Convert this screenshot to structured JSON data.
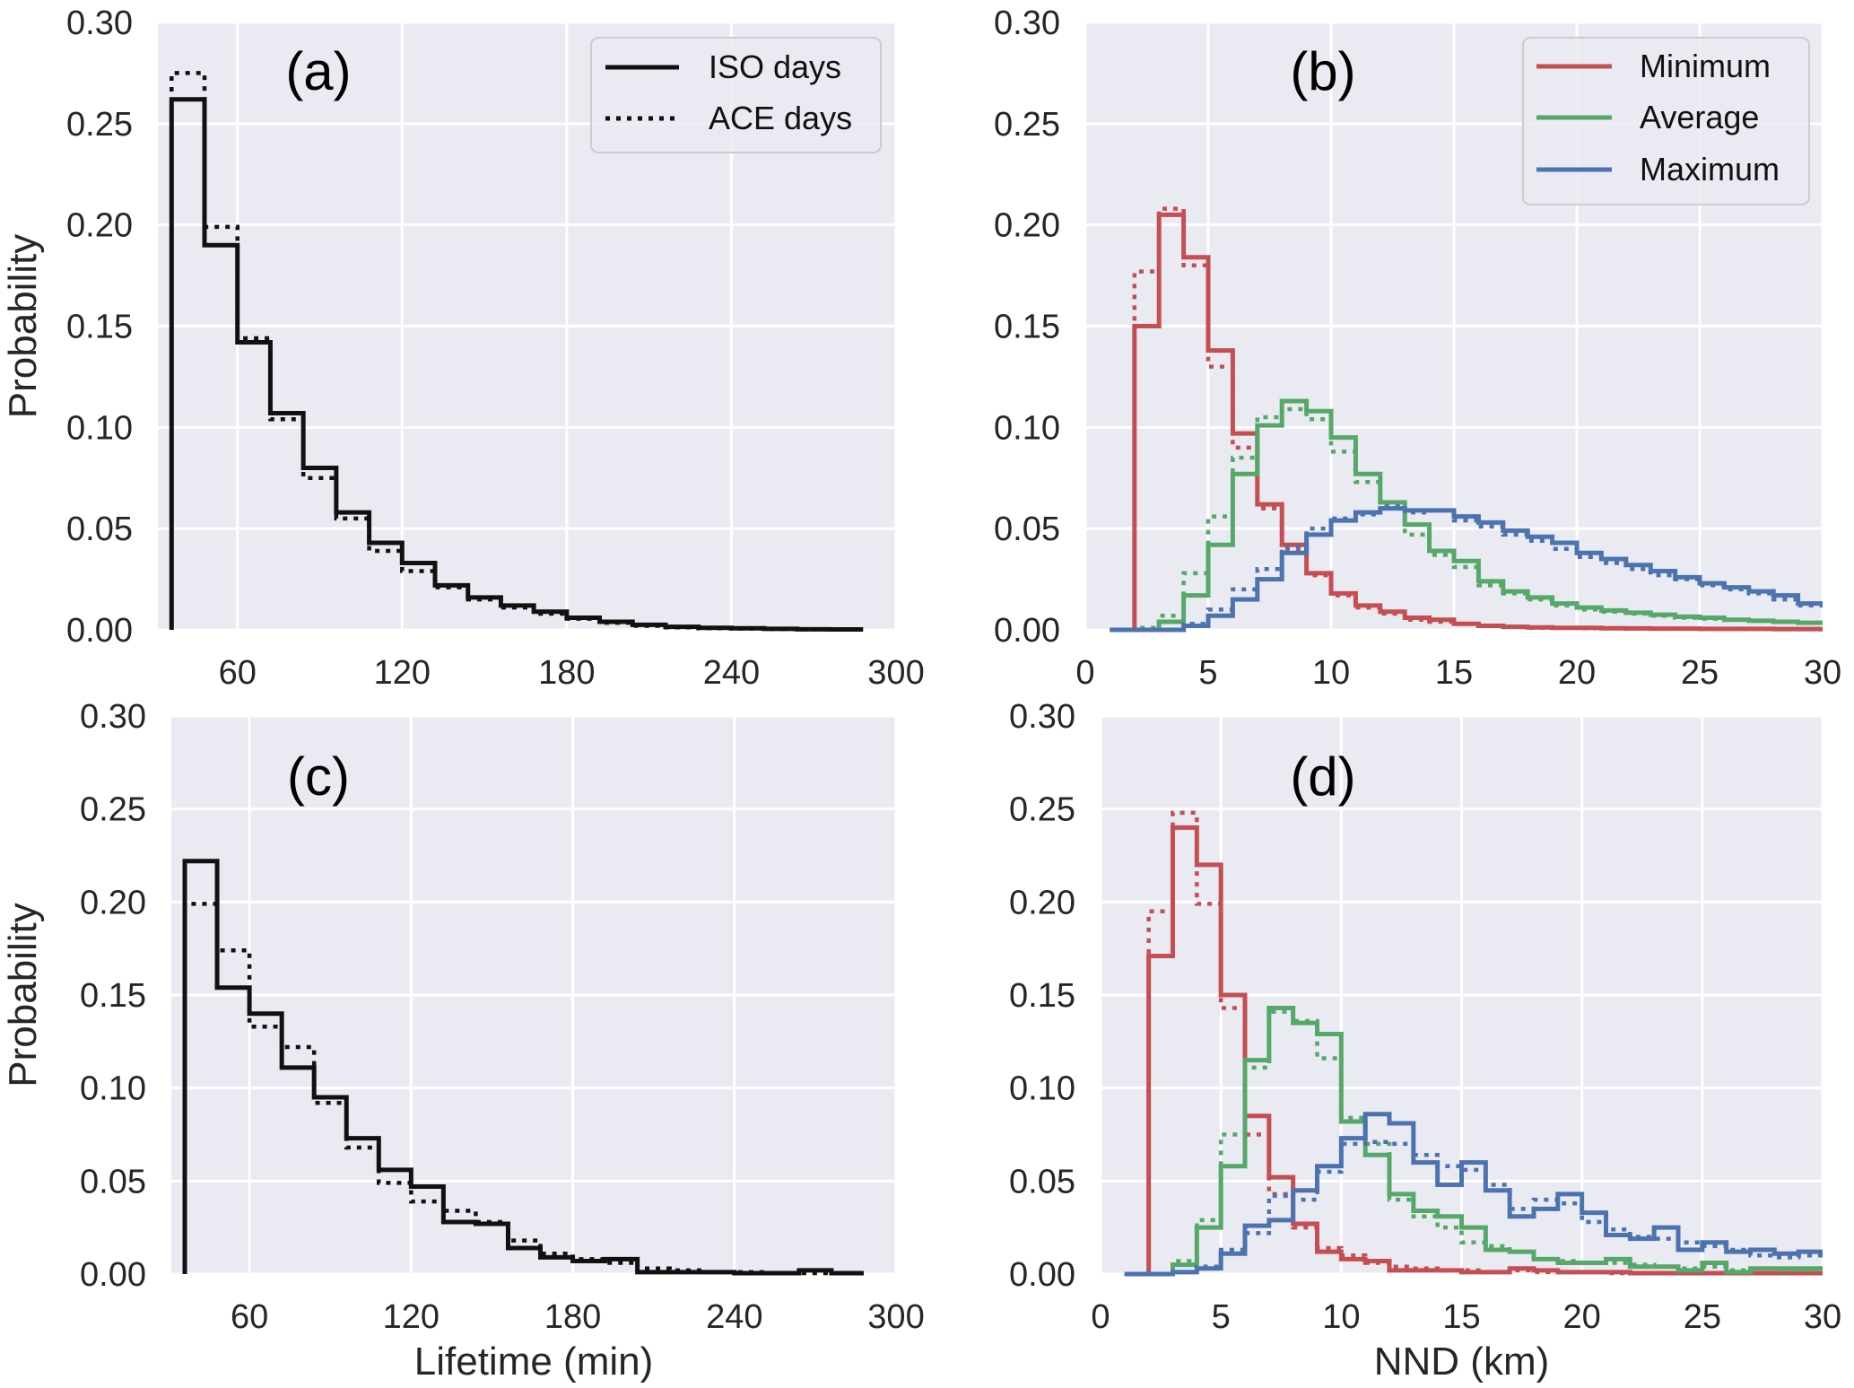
{
  "chart_data": [
    {
      "panel_label": "(a)",
      "type": "line",
      "style": "step-histogram",
      "ylabel": "Probability",
      "xlabel": "",
      "xlim": [
        31,
        300
      ],
      "ylim": [
        0,
        0.3
      ],
      "xticks": [
        60,
        120,
        180,
        240,
        300
      ],
      "yticks": [
        "0.00",
        "0.05",
        "0.10",
        "0.15",
        "0.20",
        "0.25",
        "0.30"
      ],
      "grid": true,
      "legend": {
        "placement": "top-right",
        "entries": [
          {
            "label": "ISO days",
            "style": "solid"
          },
          {
            "label": "ACE days",
            "style": "dotted"
          }
        ]
      },
      "bin_start": 36,
      "bin_width": 12,
      "series": [
        {
          "name": "ISO days",
          "style": "solid",
          "color": "#111111",
          "values": [
            0.262,
            0.19,
            0.142,
            0.107,
            0.08,
            0.058,
            0.043,
            0.033,
            0.022,
            0.016,
            0.012,
            0.009,
            0.006,
            0.004,
            0.0025,
            0.0015,
            0.001,
            0.0008,
            0.0005,
            0.0003,
            0.0002
          ]
        },
        {
          "name": "ACE days",
          "style": "dotted",
          "color": "#111111",
          "values": [
            0.275,
            0.199,
            0.144,
            0.104,
            0.075,
            0.055,
            0.039,
            0.029,
            0.021,
            0.015,
            0.011,
            0.008,
            0.0055,
            0.0035,
            0.002,
            0.0012,
            0.0008,
            0.0006,
            0.0004,
            0.0002,
            0.0001
          ]
        }
      ]
    },
    {
      "panel_label": "(b)",
      "type": "line",
      "style": "step-histogram",
      "ylabel": "",
      "xlabel": "",
      "xlim": [
        0,
        30
      ],
      "ylim": [
        0,
        0.3
      ],
      "xticks": [
        0,
        5,
        10,
        15,
        20,
        25,
        30
      ],
      "yticks": [
        "0.00",
        "0.05",
        "0.10",
        "0.15",
        "0.20",
        "0.25",
        "0.30"
      ],
      "grid": true,
      "legend": {
        "placement": "top-right",
        "entries": [
          {
            "label": "Minimum",
            "color": "#c44e52"
          },
          {
            "label": "Average",
            "color": "#55a868"
          },
          {
            "label": "Maximum",
            "color": "#4c72b0"
          }
        ]
      },
      "bin_start": 1,
      "bin_width": 1,
      "series": [
        {
          "name": "Minimum",
          "style": "solid",
          "color": "#c44e52",
          "values": [
            0,
            0.15,
            0.205,
            0.184,
            0.138,
            0.097,
            0.062,
            0.042,
            0.028,
            0.018,
            0.012,
            0.009,
            0.006,
            0.005,
            0.003,
            0.002,
            0.0015,
            0.0012,
            0.001,
            0.001,
            0.0008,
            0.0007,
            0.0006,
            0.0006,
            0.0005,
            0.0005,
            0.0005,
            0.0004,
            0.0004
          ]
        },
        {
          "name": "Minimum",
          "style": "dotted",
          "color": "#c44e52",
          "values": [
            0,
            0.177,
            0.208,
            0.18,
            0.13,
            0.09,
            0.06,
            0.04,
            0.027,
            0.017,
            0.011,
            0.008,
            0.005,
            0.004,
            0.003,
            0.002,
            0.0015,
            0.001,
            0.001,
            0.0008,
            0.0007,
            0.0006,
            0.0005,
            0.0005,
            0.0004,
            0.0004,
            0.0004,
            0.0003,
            0.0003
          ]
        },
        {
          "name": "Average",
          "style": "solid",
          "color": "#55a868",
          "values": [
            0,
            0,
            0.004,
            0.017,
            0.042,
            0.077,
            0.101,
            0.113,
            0.108,
            0.095,
            0.077,
            0.063,
            0.052,
            0.039,
            0.034,
            0.024,
            0.019,
            0.016,
            0.013,
            0.011,
            0.0096,
            0.0085,
            0.0075,
            0.0065,
            0.006,
            0.005,
            0.0045,
            0.004,
            0.0035
          ]
        },
        {
          "name": "Average",
          "style": "dotted",
          "color": "#55a868",
          "values": [
            0,
            0.001,
            0.007,
            0.028,
            0.056,
            0.085,
            0.105,
            0.109,
            0.104,
            0.088,
            0.073,
            0.06,
            0.047,
            0.037,
            0.031,
            0.022,
            0.018,
            0.015,
            0.012,
            0.01,
            0.009,
            0.008,
            0.007,
            0.006,
            0.0055,
            0.005,
            0.0045,
            0.004,
            0.0035
          ]
        },
        {
          "name": "Maximum",
          "style": "solid",
          "color": "#4c72b0",
          "values": [
            0,
            0,
            0,
            0.002,
            0.007,
            0.015,
            0.025,
            0.038,
            0.047,
            0.054,
            0.058,
            0.06,
            0.059,
            0.059,
            0.056,
            0.053,
            0.049,
            0.046,
            0.043,
            0.038,
            0.035,
            0.032,
            0.029,
            0.026,
            0.023,
            0.021,
            0.019,
            0.017,
            0.013
          ]
        },
        {
          "name": "Maximum",
          "style": "dotted",
          "color": "#4c72b0",
          "values": [
            0,
            0,
            0,
            0.003,
            0.01,
            0.02,
            0.03,
            0.041,
            0.05,
            0.055,
            0.057,
            0.061,
            0.058,
            0.059,
            0.054,
            0.051,
            0.047,
            0.044,
            0.04,
            0.036,
            0.033,
            0.03,
            0.027,
            0.025,
            0.022,
            0.02,
            0.018,
            0.015,
            0.012
          ]
        }
      ]
    },
    {
      "panel_label": "(c)",
      "type": "line",
      "style": "step-histogram",
      "ylabel": "Probability",
      "xlabel": "Lifetime (min)",
      "xlim": [
        31,
        300
      ],
      "ylim": [
        0,
        0.3
      ],
      "xticks": [
        60,
        120,
        180,
        240,
        300
      ],
      "yticks": [
        "0.00",
        "0.05",
        "0.10",
        "0.15",
        "0.20",
        "0.25",
        "0.30"
      ],
      "grid": true,
      "bin_start": 36,
      "bin_width": 12,
      "series": [
        {
          "name": "ISO days",
          "style": "solid",
          "color": "#111111",
          "values": [
            0.222,
            0.154,
            0.14,
            0.111,
            0.095,
            0.073,
            0.056,
            0.047,
            0.028,
            0.027,
            0.014,
            0.009,
            0.007,
            0.008,
            0.001,
            0.001,
            0.001,
            0.0005,
            0.0005,
            0.002,
            0.0005
          ]
        },
        {
          "name": "ACE days",
          "style": "dotted",
          "color": "#111111",
          "values": [
            0.199,
            0.174,
            0.133,
            0.122,
            0.092,
            0.068,
            0.049,
            0.039,
            0.034,
            0.028,
            0.018,
            0.011,
            0.008,
            0.006,
            0.003,
            0.002,
            0.001,
            0.001,
            0.0005,
            0.0005,
            0.0005
          ]
        }
      ]
    },
    {
      "panel_label": "(d)",
      "type": "line",
      "style": "step-histogram",
      "ylabel": "",
      "xlabel": "NND (km)",
      "xlim": [
        0,
        30
      ],
      "ylim": [
        0,
        0.3
      ],
      "xticks": [
        0,
        5,
        10,
        15,
        20,
        25,
        30
      ],
      "yticks": [
        "0.00",
        "0.05",
        "0.10",
        "0.15",
        "0.20",
        "0.25",
        "0.30"
      ],
      "grid": true,
      "bin_start": 1,
      "bin_width": 1,
      "series": [
        {
          "name": "Minimum",
          "style": "solid",
          "color": "#c44e52",
          "values": [
            0,
            0.171,
            0.24,
            0.22,
            0.15,
            0.085,
            0.052,
            0.027,
            0.012,
            0.008,
            0.007,
            0.002,
            0.002,
            0.002,
            0.001,
            0.001,
            0.003,
            0.002,
            0.001,
            0.001,
            0.001,
            0.0005,
            0.0005,
            0.0005,
            0.0005,
            0.0005,
            0.0005,
            0.0005,
            0.0005
          ]
        },
        {
          "name": "Minimum",
          "style": "dotted",
          "color": "#c44e52",
          "values": [
            0,
            0.195,
            0.248,
            0.199,
            0.143,
            0.075,
            0.043,
            0.025,
            0.014,
            0.01,
            0.006,
            0.004,
            0.003,
            0.002,
            0.002,
            0.001,
            0.002,
            0.001,
            0.001,
            0.001,
            0.0005,
            0.0005,
            0.0005,
            0.0005,
            0.0005,
            0.0005,
            0.0005,
            0.0005,
            0.0005
          ]
        },
        {
          "name": "Average",
          "style": "solid",
          "color": "#55a868",
          "values": [
            0,
            0,
            0.005,
            0.025,
            0.058,
            0.115,
            0.143,
            0.135,
            0.129,
            0.082,
            0.064,
            0.043,
            0.034,
            0.031,
            0.025,
            0.013,
            0.012,
            0.008,
            0.006,
            0.006,
            0.008,
            0.004,
            0.004,
            0.002,
            0.006,
            0.001,
            0.003,
            0.003,
            0.003
          ]
        },
        {
          "name": "Average",
          "style": "dotted",
          "color": "#55a868",
          "values": [
            0,
            0,
            0.007,
            0.029,
            0.075,
            0.111,
            0.141,
            0.136,
            0.116,
            0.084,
            0.07,
            0.04,
            0.031,
            0.025,
            0.017,
            0.015,
            0.012,
            0.008,
            0.007,
            0.006,
            0.006,
            0.005,
            0.004,
            0.003,
            0.004,
            0.002,
            0.003,
            0.002,
            0.002
          ]
        },
        {
          "name": "Maximum",
          "style": "solid",
          "color": "#4c72b0",
          "values": [
            0,
            0,
            0.001,
            0.003,
            0.011,
            0.026,
            0.029,
            0.045,
            0.058,
            0.073,
            0.086,
            0.081,
            0.06,
            0.048,
            0.06,
            0.045,
            0.031,
            0.035,
            0.043,
            0.033,
            0.021,
            0.019,
            0.025,
            0.013,
            0.017,
            0.012,
            0.013,
            0.011,
            0.012
          ]
        },
        {
          "name": "Maximum",
          "style": "dotted",
          "color": "#4c72b0",
          "values": [
            0,
            0,
            0.001,
            0.004,
            0.013,
            0.022,
            0.042,
            0.04,
            0.055,
            0.07,
            0.071,
            0.07,
            0.064,
            0.058,
            0.056,
            0.048,
            0.035,
            0.04,
            0.038,
            0.028,
            0.024,
            0.02,
            0.019,
            0.017,
            0.015,
            0.013,
            0.01,
            0.009,
            0.01
          ]
        }
      ]
    }
  ]
}
